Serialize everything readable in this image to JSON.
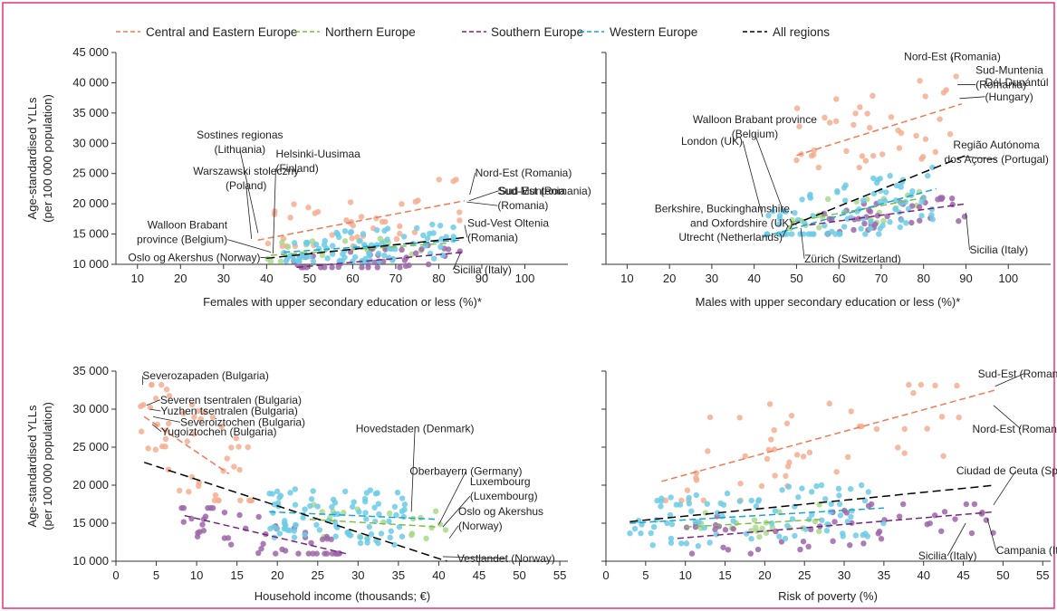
{
  "legend": {
    "items": [
      {
        "label": "Central and Eastern Europe",
        "color": "#f07a52",
        "dashed": true
      },
      {
        "label": "Northern Europe",
        "color": "#7dbf4b",
        "dashed": true
      },
      {
        "label": "Southern Europe",
        "color": "#7a237e",
        "dashed": true
      },
      {
        "label": "Western Europe",
        "color": "#1aa3cc",
        "dashed": true
      },
      {
        "label": "All regions",
        "color": "#000000",
        "dashed": true
      }
    ]
  },
  "colors": {
    "border": "#e8327a",
    "cee_point": "#f5ad91",
    "north_point": "#a8d98a",
    "south_point": "#9c66a8",
    "west_point": "#6ccbe6"
  },
  "chart_data": [
    {
      "type": "scatter",
      "title": "",
      "xlabel": "Females with upper secondary education or less (%)*",
      "ylabel": [
        "Age-standardised YLLs",
        "(per 100 000 population)"
      ],
      "xlim": [
        5,
        110
      ],
      "ylim": [
        10000,
        45000
      ],
      "xticks": [
        "10",
        "20",
        "30",
        "40",
        "50",
        "60",
        "70",
        "80",
        "90",
        "100"
      ],
      "yticks": [
        "10 000",
        "15 000",
        "20 000",
        "25 000",
        "30 000",
        "35 000",
        "40 000",
        "45 000"
      ],
      "series": [
        {
          "name": "Central and Eastern Europe",
          "x_range": [
            38,
            87
          ],
          "y_range": [
            13000,
            24000
          ],
          "n": 40,
          "trend": [
            [
              38,
              14000
            ],
            [
              86,
              20500
            ]
          ]
        },
        {
          "name": "Northern Europe",
          "x_range": [
            40,
            80
          ],
          "y_range": [
            10500,
            15000
          ],
          "n": 20,
          "trend": [
            [
              41,
              11500
            ],
            [
              82,
              13500
            ]
          ]
        },
        {
          "name": "Southern Europe",
          "x_range": [
            46,
            86
          ],
          "y_range": [
            9500,
            14000
          ],
          "n": 40,
          "trend": [
            [
              47,
              9500
            ],
            [
              86,
              12000
            ]
          ]
        },
        {
          "name": "Western Europe",
          "x_range": [
            44,
            85
          ],
          "y_range": [
            10500,
            17000
          ],
          "n": 90,
          "trend": [
            [
              44,
              12000
            ],
            [
              85,
              14000
            ]
          ]
        },
        {
          "name": "All regions",
          "trend": [
            [
              40,
              11000
            ],
            [
              87,
              14500
            ]
          ]
        }
      ],
      "annotations": [
        {
          "lines": [
            "Sostines regionas",
            "(Lithuania)"
          ],
          "x": 38,
          "y": 15200
        },
        {
          "lines": [
            "Warszawski stoleczny",
            "(Poland)"
          ],
          "x": 36.5,
          "y": 14200
        },
        {
          "lines": [
            "Helsinki-Uusimaa",
            "(Finland)"
          ],
          "x": 41.5,
          "y": 11800
        },
        {
          "lines": [
            "Walloon Brabant",
            "province (Belgium)"
          ],
          "x": 41,
          "y": 12000
        },
        {
          "lines": [
            "Oslo og Akershus (Norway)"
          ],
          "x": 41.5,
          "y": 11000
        },
        {
          "lines": [
            "Nord-Est (Romania)"
          ],
          "x": 87.2,
          "y": 21500
        },
        {
          "lines": [
            "Sud-Est (Romania)"
          ],
          "x": 87,
          "y": 20500
        },
        {
          "lines": [
            "Sud-Muntenia",
            "(Romania)"
          ],
          "x": 86.5,
          "y": 20300
        },
        {
          "lines": [
            "Sud-Vest Oltenia",
            "(Romania)"
          ],
          "x": 86,
          "y": 16500
        },
        {
          "lines": [
            "Sicilia (Italy)"
          ],
          "x": 85,
          "y": 11800
        }
      ]
    },
    {
      "type": "scatter",
      "title": "",
      "xlabel": "Males with upper secondary education or less (%)*",
      "ylabel": [],
      "xlim": [
        5,
        110
      ],
      "ylim": [
        10000,
        45000
      ],
      "xticks": [
        "10",
        "20",
        "30",
        "40",
        "50",
        "60",
        "70",
        "80",
        "90",
        "100"
      ],
      "yticks": [],
      "series": [
        {
          "name": "Central and Eastern Europe",
          "x_range": [
            50,
            89
          ],
          "y_range": [
            26000,
            44000
          ],
          "n": 40,
          "trend": [
            [
              50,
              28000
            ],
            [
              89,
              36500
            ]
          ]
        },
        {
          "name": "Northern Europe",
          "x_range": [
            48,
            80
          ],
          "y_range": [
            16000,
            22000
          ],
          "n": 20,
          "trend": [
            [
              49,
              17000
            ],
            [
              80,
              21000
            ]
          ]
        },
        {
          "name": "Southern Europe",
          "x_range": [
            55,
            90
          ],
          "y_range": [
            15000,
            21000
          ],
          "n": 40,
          "trend": [
            [
              53,
              16500
            ],
            [
              90,
              20000
            ]
          ]
        },
        {
          "name": "Western Europe",
          "x_range": [
            42,
            83
          ],
          "y_range": [
            15000,
            26000
          ],
          "n": 90,
          "trend": [
            [
              42,
              14500
            ],
            [
              83,
              22500
            ]
          ]
        },
        {
          "name": "All regions",
          "trend": [
            [
              49,
              16500
            ],
            [
              90,
              28000
            ]
          ]
        }
      ],
      "annotations": [
        {
          "lines": [
            "Nord-Est (Romania)"
          ],
          "x": 86.8,
          "y": 43400
        },
        {
          "lines": [
            "Sud-Muntenia",
            "(Romania)"
          ],
          "x": 88,
          "y": 39700
        },
        {
          "lines": [
            "Dél-Dunántúl",
            "(Hungary)"
          ],
          "x": 88.5,
          "y": 37400
        },
        {
          "lines": [
            "Walloon Brabant province",
            "(Belgium)"
          ],
          "x": 47,
          "y": 18500
        },
        {
          "lines": [
            "London (UK)"
          ],
          "x": 42,
          "y": 17800
        },
        {
          "lines": [
            "Região Autónoma",
            "dos Açores (Portugal)"
          ],
          "x": 89.5,
          "y": 27800
        },
        {
          "lines": [
            "Berkshire, Buckinghamshire,",
            "and Oxfordshire (UK)"
          ],
          "x": 50,
          "y": 16500
        },
        {
          "lines": [
            "Utrecht (Netherlands)"
          ],
          "x": 48,
          "y": 16400
        },
        {
          "lines": [
            "Zürich (Switzerland)"
          ],
          "x": 51,
          "y": 16000
        },
        {
          "lines": [
            "Sicilia (Italy)"
          ],
          "x": 90,
          "y": 18500
        }
      ]
    },
    {
      "type": "scatter",
      "title": "",
      "xlabel": "Household income (thousands; €)",
      "ylabel": [
        "Age-standardised YLLs",
        "(per 100 000 population)"
      ],
      "xlim": [
        0,
        56
      ],
      "ylim": [
        10000,
        35000
      ],
      "xticks": [
        "0",
        "5",
        "10",
        "15",
        "20",
        "25",
        "30",
        "35",
        "40",
        "45",
        "50",
        "55"
      ],
      "yticks": [
        "10 000",
        "15 000",
        "20 000",
        "25 000",
        "30 000",
        "35 000"
      ],
      "series": [
        {
          "name": "Central and Eastern Europe",
          "x_range": [
            3,
            17
          ],
          "y_range": [
            18000,
            33200
          ],
          "n": 50,
          "trend": [
            [
              3.5,
              29000
            ],
            [
              14,
              21500
            ]
          ]
        },
        {
          "name": "Northern Europe",
          "x_range": [
            24,
            41
          ],
          "y_range": [
            13000,
            18000
          ],
          "n": 20,
          "trend": [
            [
              24,
              15500
            ],
            [
              40,
              14500
            ]
          ]
        },
        {
          "name": "Southern Europe",
          "x_range": [
            8,
            28
          ],
          "y_range": [
            11000,
            17000
          ],
          "n": 50,
          "trend": [
            [
              8.5,
              16000
            ],
            [
              28.5,
              11000
            ]
          ]
        },
        {
          "name": "Western Europe",
          "x_range": [
            19,
            36
          ],
          "y_range": [
            12000,
            20000
          ],
          "n": 90,
          "trend": [
            [
              19,
              16500
            ],
            [
              40,
              15500
            ]
          ]
        },
        {
          "name": "All regions",
          "trend": [
            [
              3.5,
              23000
            ],
            [
              41,
              10000
            ]
          ]
        }
      ],
      "annotations": [
        {
          "lines": [
            "Severozapaden (Bulgaria)"
          ],
          "x": 3.3,
          "y": 33200
        },
        {
          "lines": [
            "Severen tsentralen (Bulgaria)"
          ],
          "x": 3.8,
          "y": 30500
        },
        {
          "lines": [
            "Yuzhen tsentralen (Bulgaria)"
          ],
          "x": 4.2,
          "y": 30000
        },
        {
          "lines": [
            "Severoiztochen (Bulgaria)"
          ],
          "x": 4.6,
          "y": 29000
        },
        {
          "lines": [
            "Yugoiztochen (Bulgaria)"
          ],
          "x": 4.5,
          "y": 28000
        },
        {
          "lines": [
            "Hovedstaden (Denmark)"
          ],
          "x": 36.6,
          "y": 16500
        },
        {
          "lines": [
            "Oberbayern (Germany)"
          ],
          "x": 40,
          "y": 14800
        },
        {
          "lines": [
            "Luxembourg",
            "(Luxembourg)"
          ],
          "x": 40.5,
          "y": 14500
        },
        {
          "lines": [
            "Oslo og Akershus",
            "(Norway)"
          ],
          "x": 41.3,
          "y": 13000
        },
        {
          "lines": [
            "Vestlandet (Norway)"
          ],
          "x": 40.5,
          "y": 10600
        }
      ]
    },
    {
      "type": "scatter",
      "title": "",
      "xlabel": "Risk of poverty (%)",
      "ylabel": [],
      "xlim": [
        0,
        56
      ],
      "ylim": [
        10000,
        35000
      ],
      "xticks": [
        "0",
        "5",
        "10",
        "15",
        "20",
        "25",
        "30",
        "35",
        "40",
        "45",
        "50",
        "55"
      ],
      "yticks": [],
      "series": [
        {
          "name": "Central and Eastern Europe",
          "x_range": [
            7,
            45
          ],
          "y_range": [
            18000,
            33200
          ],
          "n": 50,
          "trend": [
            [
              7,
              20500
            ],
            [
              49,
              32500
            ]
          ]
        },
        {
          "name": "Northern Europe",
          "x_range": [
            10,
            27
          ],
          "y_range": [
            13000,
            18000
          ],
          "n": 20,
          "trend": [
            [
              10,
              14500
            ],
            [
              27,
              15500
            ]
          ]
        },
        {
          "name": "Southern Europe",
          "x_range": [
            9,
            49
          ],
          "y_range": [
            11000,
            17500
          ],
          "n": 50,
          "trend": [
            [
              9,
              13000
            ],
            [
              49,
              16500
            ]
          ]
        },
        {
          "name": "Western Europe",
          "x_range": [
            3,
            35
          ],
          "y_range": [
            12000,
            20000
          ],
          "n": 90,
          "trend": [
            [
              3,
              15000
            ],
            [
              35,
              17000
            ]
          ]
        },
        {
          "name": "All regions",
          "trend": [
            [
              3,
              15200
            ],
            [
              49,
              20000
            ]
          ]
        }
      ],
      "annotations": [
        {
          "lines": [
            "Sud-Est (Romania)"
          ],
          "x": 49,
          "y": 33000
        },
        {
          "lines": [
            "Nord-Est (Romania)"
          ],
          "x": 48.8,
          "y": 30500
        },
        {
          "lines": [
            "Ciudad de Ceuta (Spain)"
          ],
          "x": 48.8,
          "y": 17400
        },
        {
          "lines": [
            "Sicilia (Italy)"
          ],
          "x": 45.3,
          "y": 15000
        },
        {
          "lines": [
            "Campania (Italy)"
          ],
          "x": 48,
          "y": 15700
        }
      ]
    }
  ]
}
